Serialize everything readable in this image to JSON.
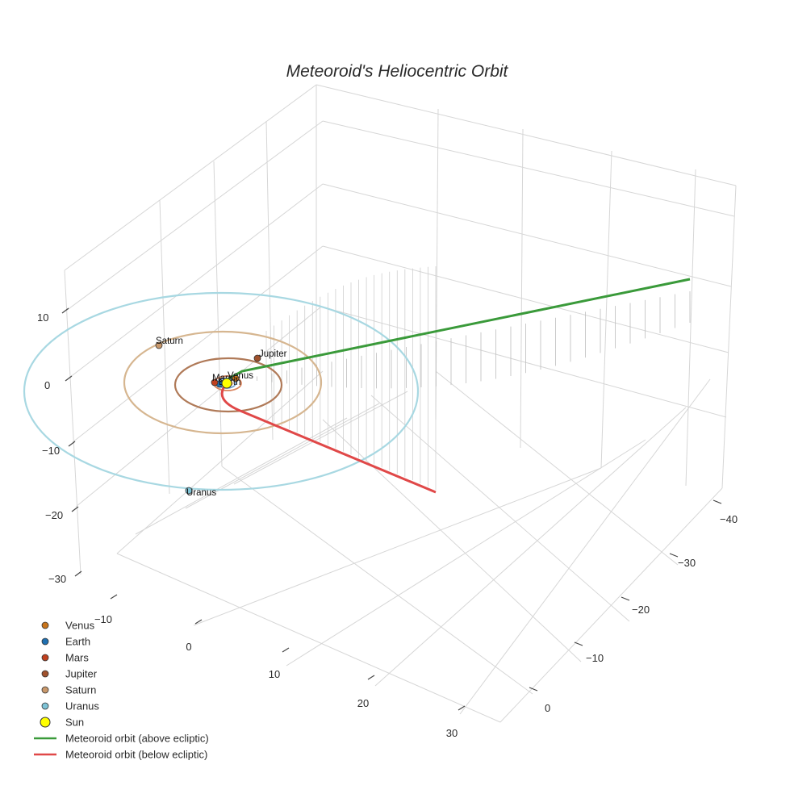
{
  "chart_data": {
    "type": "scatter3d",
    "title": "Meteoroid's Heliocentric Orbit",
    "axes": {
      "x": {
        "ticks": [
          -10,
          0,
          10,
          20,
          30
        ],
        "tick_labels": [
          "−10",
          "0",
          "10",
          "20",
          "30"
        ]
      },
      "y": {
        "ticks": [
          0,
          -10,
          -20,
          -30,
          -40
        ],
        "tick_labels": [
          "0",
          "−10",
          "−20",
          "−30",
          "−40"
        ]
      },
      "z": {
        "ticks": [
          10,
          0,
          -10,
          -20,
          -30
        ],
        "tick_labels": [
          "10",
          "0",
          "−10",
          "−20",
          "−30"
        ]
      }
    },
    "planets": [
      {
        "name": "Venus",
        "label": "Venus",
        "color": "#c8741b"
      },
      {
        "name": "Earth",
        "label": "Earth",
        "color": "#1f6fb0"
      },
      {
        "name": "Mars",
        "label": "Mars",
        "color": "#c0401f"
      },
      {
        "name": "Jupiter",
        "label": "Jupiter",
        "color": "#a0522d"
      },
      {
        "name": "Saturn",
        "label": "Saturn",
        "color": "#c9986b"
      },
      {
        "name": "Uranus",
        "label": "Uranus",
        "color": "#7ec3d6"
      }
    ],
    "sun": {
      "name": "Sun",
      "color": "#ffff00"
    },
    "series": [
      {
        "name": "Meteoroid orbit (above ecliptic)",
        "color": "#3a9a3a"
      },
      {
        "name": "Meteoroid orbit (below ecliptic)",
        "color": "#e04848"
      }
    ],
    "orbit_colors": {
      "uranus": "#a8d8e2",
      "saturn": "#d6b690",
      "jupiter": "#b07a58",
      "mars": "#d9835c",
      "earth": "#6a9ed0",
      "venus": "#e0a060"
    },
    "legend": {
      "position": "bottom-left",
      "items": [
        {
          "label": "Venus",
          "kind": "marker",
          "color": "#c8741b"
        },
        {
          "label": "Earth",
          "kind": "marker",
          "color": "#1f6fb0"
        },
        {
          "label": "Mars",
          "kind": "marker",
          "color": "#c0401f"
        },
        {
          "label": "Jupiter",
          "kind": "marker",
          "color": "#a0522d"
        },
        {
          "label": "Saturn",
          "kind": "marker",
          "color": "#c9986b"
        },
        {
          "label": "Uranus",
          "kind": "marker",
          "color": "#7ec3d6"
        },
        {
          "label": "Sun",
          "kind": "sun",
          "color": "#ffff00"
        },
        {
          "label": "Meteoroid orbit (above ecliptic)",
          "kind": "line",
          "color": "#3a9a3a"
        },
        {
          "label": "Meteoroid orbit (below ecliptic)",
          "kind": "line",
          "color": "#e04848"
        }
      ]
    },
    "grid": true
  }
}
